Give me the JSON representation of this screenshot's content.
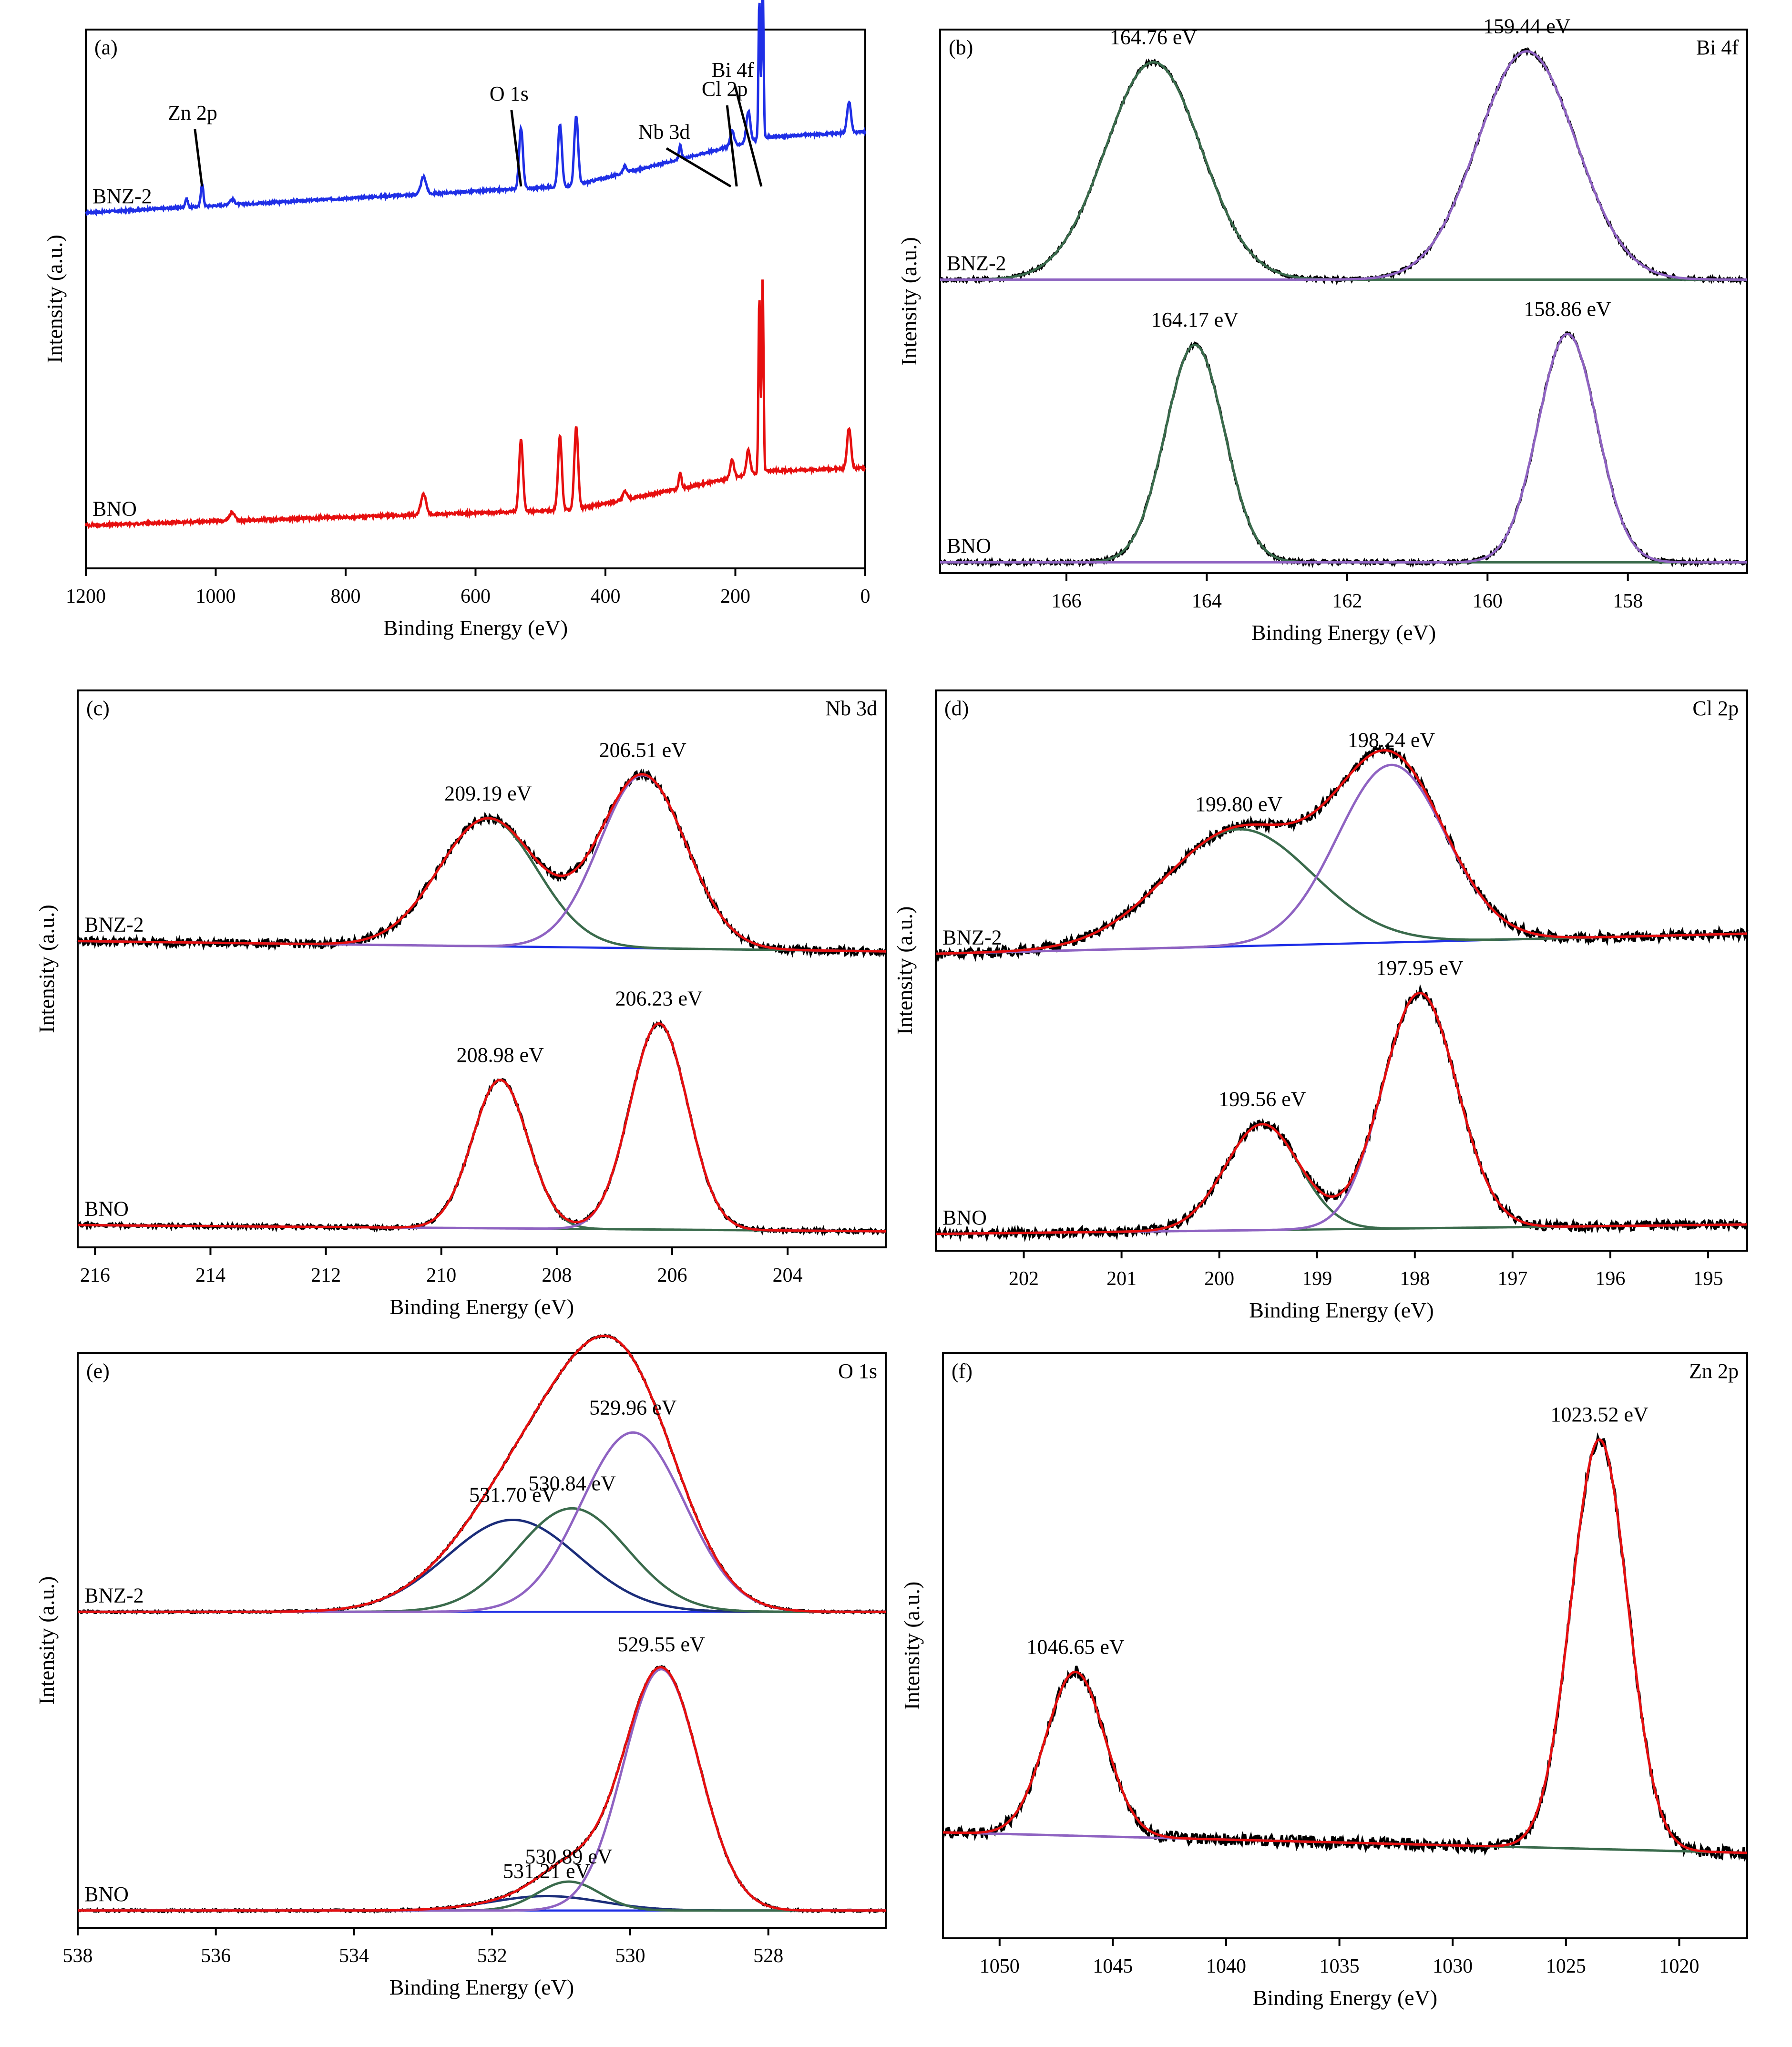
{
  "chart_data": [
    {
      "id": "a",
      "type": "line",
      "tag": "(a)",
      "element": "",
      "xlabel": "Binding Energy (eV)",
      "ylabel": "Intensity (a.u.)",
      "xlim": [
        1200,
        0
      ],
      "xticks": [
        1200,
        1000,
        800,
        600,
        400,
        200,
        0
      ],
      "series": [
        {
          "name": "BNZ-2",
          "color": "#1f2fe6",
          "offset": 0.66,
          "amp": 0.32,
          "baseline": [
            0.0,
            0.25
          ],
          "step": [
            450,
            0.22
          ],
          "peaks": [
            [
              1045,
              0.05,
              2
            ],
            [
              1021,
              0.13,
              2
            ],
            [
              975,
              0.03,
              4
            ],
            [
              680,
              0.1,
              4
            ],
            [
              530,
              0.35,
              3
            ],
            [
              470,
              0.36,
              3
            ],
            [
              445,
              0.4,
              3
            ],
            [
              370,
              0.04,
              3
            ],
            [
              285,
              0.08,
              2
            ],
            [
              205,
              0.09,
              3
            ],
            [
              180,
              0.18,
              3
            ],
            [
              163,
              0.8,
              1.4
            ],
            [
              158,
              0.95,
              1.4
            ],
            [
              25,
              0.18,
              3
            ]
          ]
        },
        {
          "name": "BNO",
          "color": "#e60f0f",
          "offset": 0.08,
          "amp": 0.38,
          "baseline": [
            0.0,
            0.12
          ],
          "step": [
            450,
            0.16
          ],
          "peaks": [
            [
              975,
              0.04,
              4
            ],
            [
              680,
              0.1,
              4
            ],
            [
              530,
              0.35,
              3
            ],
            [
              470,
              0.36,
              3
            ],
            [
              445,
              0.4,
              3
            ],
            [
              370,
              0.04,
              3
            ],
            [
              285,
              0.08,
              2
            ],
            [
              205,
              0.09,
              3
            ],
            [
              180,
              0.12,
              3
            ],
            [
              163,
              0.85,
              1.4
            ],
            [
              158,
              0.95,
              1.4
            ],
            [
              25,
              0.2,
              3
            ]
          ]
        }
      ],
      "annotations": [
        {
          "text": "Zn 2p",
          "at": [
            1021,
            "BNZ-2"
          ]
        },
        {
          "text": "O 1s",
          "at": [
            530,
            "BNZ-2"
          ]
        },
        {
          "text": "Nb 3d",
          "at": [
            207,
            "BNZ-2"
          ]
        },
        {
          "text": "Cl 2p",
          "at": [
            198,
            "BNZ-2"
          ]
        },
        {
          "text": "Bi 4f",
          "at": [
            160,
            "BNZ-2"
          ]
        }
      ]
    },
    {
      "id": "b",
      "type": "line",
      "tag": "(b)",
      "element": "Bi 4f",
      "xlabel": "Binding Energy (eV)",
      "ylabel": "Intensity (a.u.)",
      "xlim": [
        167.8,
        156.3
      ],
      "xticks": [
        166,
        164,
        162,
        160,
        158
      ],
      "series": [
        {
          "name": "BNZ-2",
          "offset": 0.54,
          "amp": 0.4,
          "peaks": [
            [
              164.76,
              1.0,
              0.68
            ],
            [
              159.44,
              1.05,
              0.7
            ]
          ],
          "peak_colors": [
            "#3a6b4c",
            "#8f63c2"
          ],
          "peak_labels": [
            "164.76 eV",
            "159.44 eV"
          ],
          "background": {
            "color": "#3a6b4c",
            "values": [
              0.0,
              0.0
            ]
          }
        },
        {
          "name": "BNO",
          "offset": 0.02,
          "amp": 0.4,
          "peaks": [
            [
              164.17,
              1.0,
              0.42
            ],
            [
              158.86,
              1.05,
              0.42
            ]
          ],
          "peak_colors": [
            "#3a6b4c",
            "#8f63c2"
          ],
          "peak_labels": [
            "164.17 eV",
            "158.86 eV"
          ],
          "background": {
            "color": "#3a6b4c",
            "values": [
              0.0,
              0.0
            ]
          }
        }
      ]
    },
    {
      "id": "c",
      "type": "line",
      "tag": "(c)",
      "element": "Nb 3d",
      "xlabel": "Binding Energy (eV)",
      "ylabel": "Intensity (a.u.)",
      "xlim": [
        216.3,
        202.3
      ],
      "xticks": [
        216,
        214,
        212,
        210,
        208,
        206,
        204
      ],
      "series": [
        {
          "name": "BNZ-2",
          "offset": 0.55,
          "amp": 0.37,
          "noise": 0.04,
          "fit_color": "#e60f0f",
          "peaks": [
            [
              209.19,
              0.62,
              0.85
            ],
            [
              206.51,
              0.84,
              0.75
            ]
          ],
          "peak_colors": [
            "#3a6b4c",
            "#8f63c2"
          ],
          "peak_labels": [
            "209.19 eV",
            "206.51 eV"
          ],
          "background": {
            "color": "#1f2fe6",
            "values": [
              0.0,
              -0.05
            ]
          }
        },
        {
          "name": "BNO",
          "offset": 0.04,
          "amp": 0.37,
          "noise": 0.02,
          "fit_color": "#e60f0f",
          "peaks": [
            [
              208.98,
              0.72,
              0.48
            ],
            [
              206.23,
              1.0,
              0.5
            ]
          ],
          "peak_colors": [
            "#3a6b4c",
            "#8f63c2"
          ],
          "peak_labels": [
            "208.98 eV",
            "206.23 eV"
          ],
          "background": {
            "color": "#3a6b4c",
            "values": [
              0.0,
              -0.03
            ]
          }
        }
      ]
    },
    {
      "id": "d",
      "type": "line",
      "tag": "(d)",
      "element": "Cl 2p",
      "xlabel": "Binding Energy (eV)",
      "ylabel": "Intensity (a.u.)",
      "xlim": [
        202.9,
        194.6
      ],
      "xticks": [
        202,
        201,
        200,
        199,
        198,
        197,
        196,
        195
      ],
      "series": [
        {
          "name": "BNZ-2",
          "offset": 0.53,
          "amp": 0.36,
          "noise": 0.05,
          "fit_color": "#e60f0f",
          "peaks": [
            [
              199.8,
              0.58,
              0.75
            ],
            [
              198.24,
              0.88,
              0.55
            ]
          ],
          "peak_colors": [
            "#3a6b4c",
            "#8f63c2"
          ],
          "peak_labels": [
            "199.80 eV",
            "198.24 eV"
          ],
          "background": {
            "color": "#1f2fe6",
            "values": [
              0.0,
              0.1
            ]
          }
        },
        {
          "name": "BNO",
          "offset": 0.03,
          "amp": 0.42,
          "noise": 0.04,
          "fit_color": "#e60f0f",
          "peaks": [
            [
              199.56,
              0.45,
              0.38
            ],
            [
              197.95,
              1.0,
              0.38
            ]
          ],
          "peak_colors": [
            "#3a6b4c",
            "#8f63c2"
          ],
          "peak_labels": [
            "199.56 eV",
            "197.95 eV"
          ],
          "background": {
            "color": "#3a6b4c",
            "values": [
              0.0,
              0.04
            ]
          }
        }
      ]
    },
    {
      "id": "e",
      "type": "line",
      "tag": "(e)",
      "element": "O 1s",
      "xlabel": "Binding Energy (eV)",
      "ylabel": "Intensity (a.u.)",
      "xlim": [
        538,
        526.3
      ],
      "xticks": [
        538,
        536,
        534,
        532,
        530,
        528
      ],
      "series": [
        {
          "name": "BNZ-2",
          "offset": 0.55,
          "amp": 0.4,
          "noise": 0.01,
          "fit_color": "#e60f0f",
          "peaks": [
            [
              531.7,
              0.4,
              0.95
            ],
            [
              530.84,
              0.45,
              0.8
            ],
            [
              529.96,
              0.78,
              0.75
            ]
          ],
          "peak_colors": [
            "#1b2d7a",
            "#3a6b4c",
            "#8f63c2"
          ],
          "peak_labels": [
            "531.70 eV",
            "530.84 eV",
            "529.96 eV"
          ],
          "background": {
            "color": "#1f2fe6",
            "values": [
              0.0,
              0.0
            ]
          }
        },
        {
          "name": "BNO",
          "offset": 0.03,
          "amp": 0.42,
          "noise": 0.01,
          "fit_color": "#e60f0f",
          "peaks": [
            [
              531.21,
              0.06,
              0.8
            ],
            [
              530.89,
              0.12,
              0.45
            ],
            [
              529.55,
              1.0,
              0.55
            ]
          ],
          "peak_colors": [
            "#1b2d7a",
            "#3a6b4c",
            "#8f63c2"
          ],
          "peak_labels": [
            "531.21 eV",
            "530.89 eV",
            "529.55 eV"
          ],
          "background": {
            "color": "#1f2fe6",
            "values": [
              0.0,
              0.0
            ]
          }
        }
      ]
    },
    {
      "id": "f",
      "type": "line",
      "tag": "(f)",
      "element": "Zn  2p",
      "xlabel": "Binding Energy (eV)",
      "ylabel": "Intensity (a.u.)",
      "xlim": [
        1052.5,
        1017
      ],
      "xticks": [
        1050,
        1045,
        1040,
        1035,
        1030,
        1025,
        1020
      ],
      "series": [
        {
          "name": "",
          "offset": 0.16,
          "amp": 0.7,
          "noise": 0.03,
          "fit_color": "#e60f0f",
          "peaks": [
            [
              1046.65,
              0.4,
              1.3
            ],
            [
              1023.52,
              1.0,
              1.25
            ]
          ],
          "peak_colors": [
            "#3a6b4c",
            "#8f63c2"
          ],
          "peak_labels": [
            "1046.65 eV",
            "1023.52 eV"
          ],
          "background": {
            "color": "#3a6b4c",
            "values": [
              0.03,
              -0.02
            ]
          }
        }
      ]
    }
  ]
}
